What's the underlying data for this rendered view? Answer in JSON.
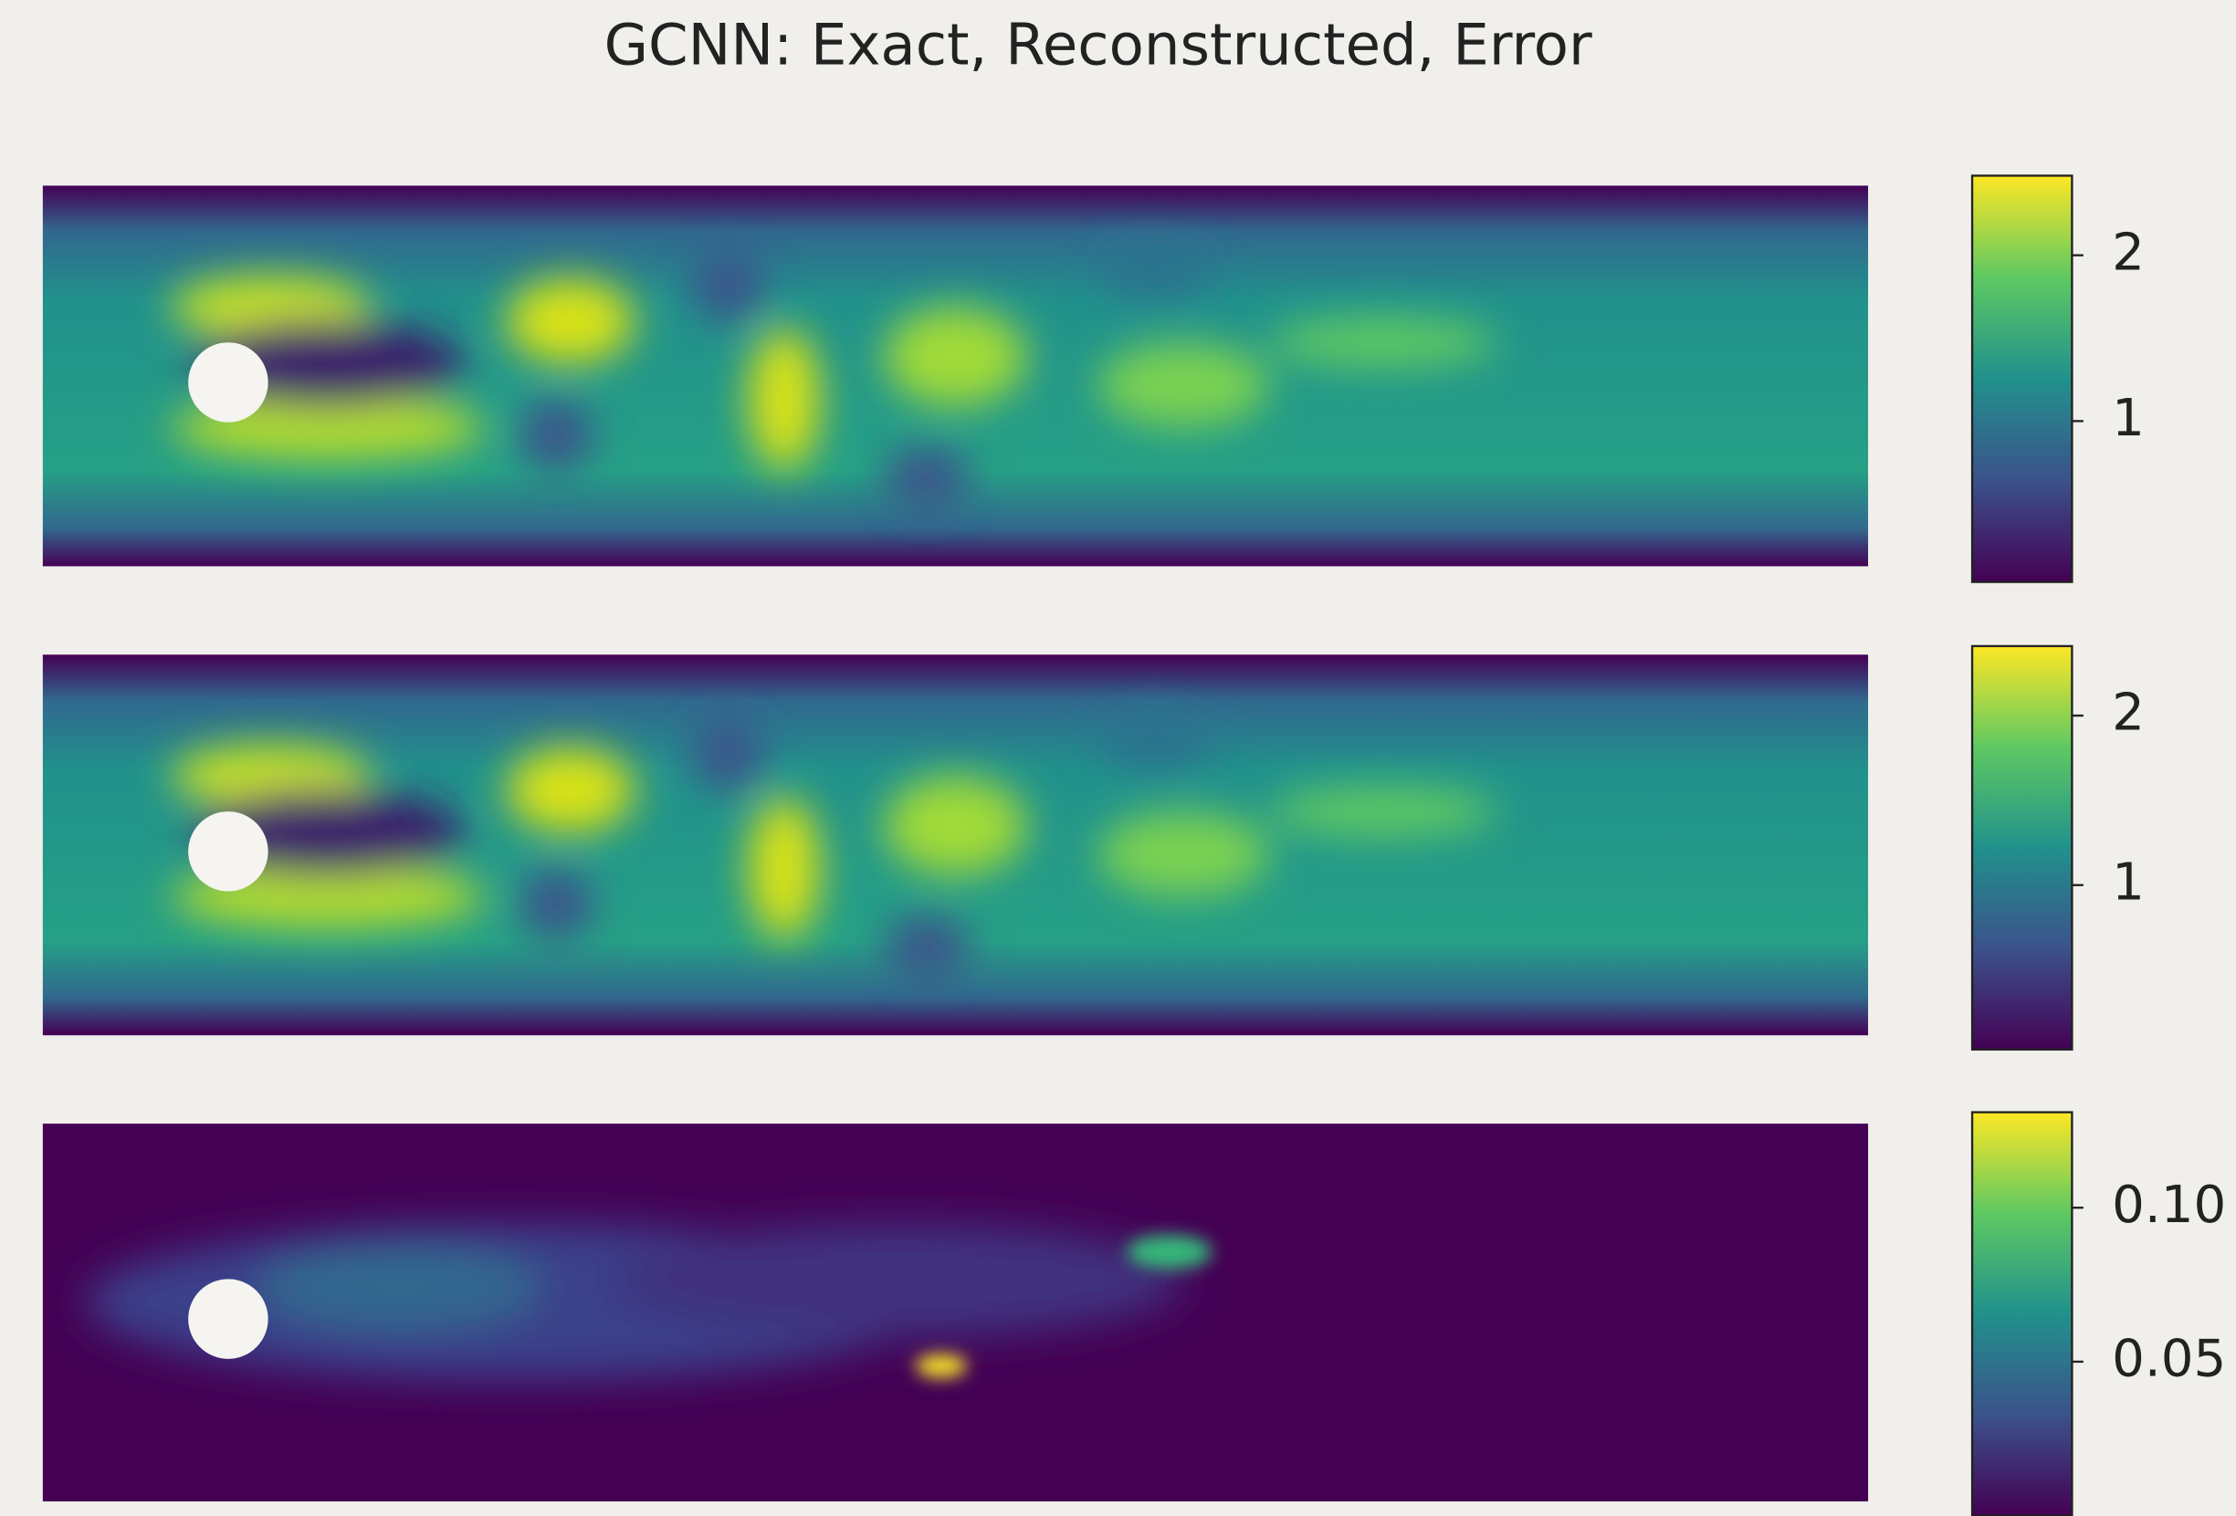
{
  "chart_data": {
    "type": "heatmap",
    "title": "GCNN: Exact, Reconstructed, Error",
    "colormap": [
      "#440154",
      "#3b528b",
      "#21918c",
      "#5ec962",
      "#fde725"
    ],
    "panels": [
      {
        "ylim": [
          0.03,
          2.48
        ],
        "yticks": [
          1,
          2
        ]
      },
      {
        "ylim": [
          0.03,
          2.41
        ],
        "yticks": [
          1,
          2
        ]
      },
      {
        "ylim": [
          0,
          0.131
        ],
        "yticks": [
          {
            "value": 0.05,
            "label": "0.05"
          },
          {
            "value": 0.1,
            "label": "0.10"
          }
        ]
      }
    ]
  }
}
